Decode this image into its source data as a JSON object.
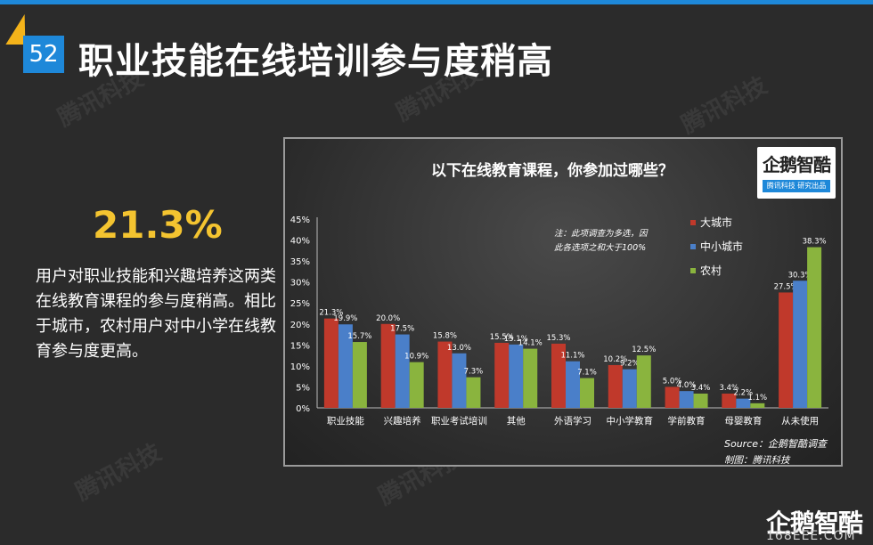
{
  "slide": {
    "number": "52",
    "title": "职业技能在线培训参与度稍高",
    "highlight": "21.3%",
    "description": "用户对职业技能和兴趣培养这两类在线教育课程的参与度稍高。相比于城市，农村用户对中小学在线教育参与度更高。",
    "watermark": "腾讯科技",
    "brand_logo": "企鹅智酷",
    "site": "168EEE.COM"
  },
  "logo_card": {
    "name": "企鹅智酷",
    "tagline": "腾讯科技  研究出品"
  },
  "colors": {
    "accent_blue": "#1e88d9",
    "accent_yellow": "#f4c430",
    "series_big_city": "#c0392b",
    "series_small_city": "#4a7fc9",
    "series_rural": "#8ab43e"
  },
  "chart_data": {
    "type": "bar",
    "title": "以下在线教育课程，你参加过哪些？",
    "note": "注：此项调查为多选，因此各选项之和大于100%",
    "source": "Source：企鹅智酷调查",
    "maker": "制图：腾讯科技",
    "categories": [
      "职业技能",
      "兴趣培养",
      "职业考试培训",
      "其他",
      "外语学习",
      "中小学教育",
      "学前教育",
      "母婴教育",
      "从未使用"
    ],
    "series": [
      {
        "name": "大城市",
        "values": [
          21.3,
          20.0,
          15.8,
          15.5,
          15.3,
          10.2,
          5.0,
          3.4,
          27.5
        ],
        "color": "#c0392b"
      },
      {
        "name": "中小城市",
        "values": [
          19.9,
          17.5,
          13.0,
          15.1,
          11.1,
          9.2,
          4.0,
          2.2,
          30.3
        ],
        "color": "#4a7fc9"
      },
      {
        "name": "农村",
        "values": [
          15.7,
          10.9,
          7.3,
          14.1,
          7.1,
          12.5,
          3.4,
          1.1,
          38.3
        ],
        "color": "#8ab43e"
      }
    ],
    "yticks": [
      "0%",
      "5%",
      "10%",
      "15%",
      "20%",
      "25%",
      "30%",
      "35%",
      "40%",
      "45%"
    ],
    "ylim": [
      0,
      45
    ],
    "grid": false,
    "legend": "top-right"
  }
}
